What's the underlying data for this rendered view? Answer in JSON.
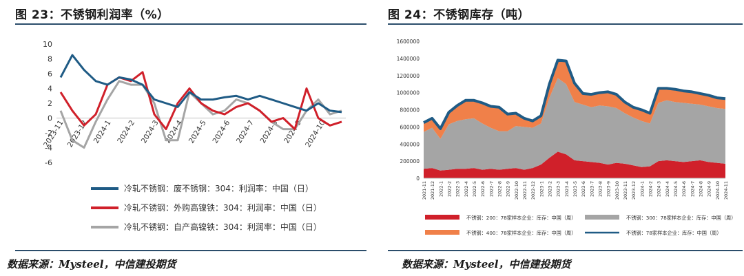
{
  "left": {
    "title": "图 23：不锈钢利润率（%）",
    "source": "数据来源：Mysteel，中信建投期货"
  },
  "right": {
    "title": "图 24：不锈钢库存（吨）",
    "source": "数据来源：Mysteel，中信建投期货"
  },
  "colors": {
    "rule": "#2b4d6b",
    "navy": "#1f5b85",
    "red": "#d0202a",
    "gray": "#a5a5a5",
    "orange": "#f08049"
  },
  "chart_data": [
    {
      "type": "line",
      "title": "不锈钢利润率（%）",
      "ylim": [
        -6,
        10
      ],
      "yticks": [
        -6,
        -4,
        -2,
        0,
        2,
        4,
        6,
        8,
        10
      ],
      "xticks": [
        "2023-11",
        "2023-12",
        "2024-1",
        "2024-2",
        "2024-3",
        "2024-4",
        "2024-5",
        "2024-6",
        "2024-7",
        "2024-8",
        "2024-9",
        "2024-10"
      ],
      "x": [
        "2023-11",
        "2023-11-15",
        "2023-12",
        "2023-12-15",
        "2024-1",
        "2024-1-15",
        "2024-2",
        "2024-2-15",
        "2024-3",
        "2024-3-15",
        "2024-4",
        "2024-4-15",
        "2024-5",
        "2024-5-15",
        "2024-6",
        "2024-6-15",
        "2024-7",
        "2024-7-15",
        "2024-8",
        "2024-8-15",
        "2024-9",
        "2024-9-15",
        "2024-10",
        "2024-10-15",
        "2024-11"
      ],
      "series": [
        {
          "name": "冷轧不锈钢：废不锈钢：304：利润率：中国（日）",
          "color": "#1f5b85",
          "values": [
            5.5,
            8.5,
            6.5,
            5.0,
            4.5,
            5.5,
            5.2,
            4.5,
            2.5,
            2.0,
            1.5,
            3.5,
            2.5,
            2.5,
            2.8,
            3.0,
            2.5,
            3.0,
            2.5,
            2.0,
            1.5,
            1.0,
            2.0,
            1.0,
            0.8
          ]
        },
        {
          "name": "冷轧不锈钢：外购高镍铁：304：利润率：中国（日）",
          "color": "#d0202a",
          "values": [
            3.5,
            1.0,
            -1.0,
            0.5,
            4.5,
            5.5,
            5.0,
            6.2,
            0.5,
            -1.5,
            2.0,
            4.0,
            2.0,
            1.0,
            0.5,
            1.5,
            2.0,
            1.0,
            -0.5,
            0.0,
            -1.5,
            4.0,
            0.0,
            -1.0,
            -0.5
          ]
        },
        {
          "name": "冷轧不锈钢：自产高镍铁：304：利润率：中国（日）",
          "color": "#a5a5a5",
          "values": [
            1.0,
            -3.0,
            -4.0,
            -0.5,
            2.5,
            5.0,
            4.5,
            4.5,
            2.0,
            -3.0,
            -3.0,
            3.5,
            2.0,
            0.5,
            1.0,
            2.5,
            2.0,
            1.0,
            -0.5,
            -1.5,
            -1.5,
            1.0,
            2.5,
            0.5,
            1.0
          ]
        }
      ],
      "legend": "bottom"
    },
    {
      "type": "area",
      "title": "不锈钢库存（吨）",
      "ylim": [
        0,
        1600000
      ],
      "yticks": [
        0,
        200000,
        400000,
        600000,
        800000,
        1000000,
        1200000,
        1400000,
        1600000
      ],
      "categories": [
        "2021-11",
        "2021-12",
        "2022-1",
        "2022-2",
        "2022-3",
        "2022-4",
        "2022-5",
        "2022-6",
        "2022-7",
        "2022-8",
        "2022-9",
        "2022-10",
        "2022-11",
        "2022-12",
        "2023-1",
        "2023-2",
        "2023-3",
        "2023-4",
        "2023-5",
        "2023-6",
        "2023-7",
        "2023-8",
        "2023-9",
        "2023-10",
        "2023-11",
        "2023-12",
        "2024-1",
        "2024-2",
        "2024-3",
        "2024-4",
        "2024-5",
        "2024-6",
        "2024-7",
        "2024-8",
        "2024-9",
        "2024-10",
        "2024-11"
      ],
      "series": [
        {
          "name": "不锈钢：200：78家样本企业：库存：中国（周）",
          "color": "#d0202a",
          "values": [
            110000,
            120000,
            90000,
            100000,
            110000,
            110000,
            120000,
            100000,
            110000,
            100000,
            110000,
            120000,
            100000,
            120000,
            160000,
            240000,
            310000,
            280000,
            210000,
            200000,
            190000,
            180000,
            160000,
            180000,
            170000,
            150000,
            130000,
            140000,
            200000,
            210000,
            200000,
            190000,
            200000,
            210000,
            190000,
            180000,
            170000
          ]
        },
        {
          "name": "不锈钢：300：78家样本企业：库存：中国（周）",
          "color": "#a5a5a5",
          "values": [
            430000,
            470000,
            370000,
            530000,
            560000,
            580000,
            580000,
            540000,
            480000,
            450000,
            440000,
            490000,
            500000,
            470000,
            480000,
            700000,
            860000,
            820000,
            680000,
            660000,
            640000,
            670000,
            680000,
            640000,
            590000,
            560000,
            540000,
            500000,
            680000,
            700000,
            690000,
            690000,
            670000,
            650000,
            650000,
            640000,
            640000
          ]
        },
        {
          "name": "不锈钢：400：78家样本企业：库存：中国（周）",
          "color": "#f08049",
          "values": [
            110000,
            110000,
            120000,
            140000,
            180000,
            220000,
            210000,
            240000,
            250000,
            280000,
            200000,
            150000,
            100000,
            80000,
            90000,
            160000,
            210000,
            270000,
            220000,
            130000,
            150000,
            150000,
            170000,
            160000,
            130000,
            120000,
            130000,
            120000,
            170000,
            140000,
            150000,
            140000,
            140000,
            130000,
            130000,
            120000,
            120000
          ]
        },
        {
          "name": "不锈钢：78家样本企业：库存：中国（周）",
          "color": "#1f5b85",
          "values": [
            650000,
            700000,
            580000,
            770000,
            850000,
            910000,
            910000,
            880000,
            840000,
            830000,
            750000,
            760000,
            700000,
            670000,
            730000,
            1100000,
            1380000,
            1370000,
            1110000,
            990000,
            980000,
            1000000,
            1010000,
            980000,
            890000,
            830000,
            800000,
            760000,
            1050000,
            1050000,
            1040000,
            1020000,
            1010000,
            990000,
            970000,
            940000,
            930000
          ]
        }
      ],
      "legend": "bottom"
    }
  ]
}
